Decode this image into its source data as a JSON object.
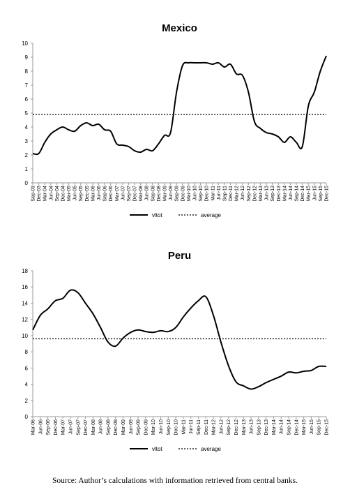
{
  "source_note": "Source: Author’s calculations with information retrieved from central banks.",
  "legend": {
    "series_label": "vltot",
    "average_label": "average"
  },
  "chart_data": [
    {
      "type": "line",
      "title": "Mexico",
      "ylim": [
        0,
        10
      ],
      "yticks": [
        0,
        1,
        2,
        3,
        4,
        5,
        6,
        7,
        8,
        9,
        10
      ],
      "x_tick_labels": [
        "Sep-03",
        "Dec-03",
        "Mar-04",
        "Jun-04",
        "Sep-04",
        "Dec-04",
        "Mar-05",
        "Jun-05",
        "Sep-05",
        "Dec-05",
        "Mar-06",
        "Jun-06",
        "Sep-06",
        "Dec-06",
        "Mar-07",
        "Jun-07",
        "Sep-07",
        "Dec-07",
        "Mar-08",
        "Jun-08",
        "Sep-08",
        "Dec-08",
        "Mar-09",
        "Jun-09",
        "Sep-09",
        "Dec-09",
        "Mar-10",
        "Jun-10",
        "Sep-10",
        "Dec-10",
        "Mar-11",
        "Jun-11",
        "Sep-11",
        "Dec-11",
        "Mar-12",
        "Jun-12",
        "Sep-12",
        "Dec-12",
        "Mar-13",
        "Jun-13",
        "Sep-13",
        "Dec-13",
        "Mar-14",
        "Jun-14",
        "Sep-14",
        "Dec-14",
        "Mar-15",
        "Jun-15",
        "Sep-15",
        "Dec-15"
      ],
      "series": [
        {
          "name": "vltot",
          "values": [
            2.1,
            2.1,
            2.9,
            3.5,
            3.8,
            4.0,
            3.8,
            3.7,
            4.1,
            4.3,
            4.1,
            4.2,
            3.8,
            3.7,
            2.8,
            2.7,
            2.6,
            2.3,
            2.2,
            2.4,
            2.3,
            2.8,
            3.4,
            3.6,
            6.5,
            8.4,
            8.6,
            8.6,
            8.6,
            8.6,
            8.5,
            8.6,
            8.3,
            8.5,
            7.8,
            7.7,
            6.5,
            4.4,
            3.9,
            3.6,
            3.5,
            3.3,
            2.9,
            3.3,
            2.9,
            2.6,
            5.5,
            6.5,
            8.0,
            9.1
          ]
        },
        {
          "name": "average",
          "values": [
            4.9
          ]
        }
      ],
      "grid": false,
      "legend": "bottom"
    },
    {
      "type": "line",
      "title": "Peru",
      "ylim": [
        0,
        18
      ],
      "yticks": [
        0,
        2,
        4,
        6,
        8,
        10,
        12,
        14,
        16,
        18
      ],
      "x_tick_labels": [
        "Mar-06",
        "Jun-06",
        "Sep-06",
        "Dec-06",
        "Mar-07",
        "Jun-07",
        "Sep-07",
        "Dec-07",
        "Mar-08",
        "Jun-08",
        "Sep-08",
        "Dec-08",
        "Mar-09",
        "Jun-09",
        "Sep-09",
        "Dec-09",
        "Mar-10",
        "Jun-10",
        "Sep-10",
        "Dec-10",
        "Mar-11",
        "Jun-11",
        "Sep-11",
        "Dec-11",
        "Mar-12",
        "Jun-12",
        "Sep-12",
        "Dec-12",
        "Mar-13",
        "Jun-13",
        "Sep-13",
        "Dec-13",
        "Mar-14",
        "Jun-14",
        "Sep-14",
        "Dec-14",
        "Mar-15",
        "Jun-15",
        "Sep-15",
        "Dec-15"
      ],
      "series": [
        {
          "name": "vltot",
          "values": [
            10.7,
            12.5,
            13.3,
            14.3,
            14.6,
            15.6,
            15.3,
            14.0,
            12.7,
            11.0,
            9.2,
            8.7,
            9.7,
            10.4,
            10.7,
            10.5,
            10.4,
            10.6,
            10.5,
            11.0,
            12.3,
            13.4,
            14.3,
            14.8,
            12.5,
            9.2,
            6.3,
            4.3,
            3.8,
            3.4,
            3.7,
            4.2,
            4.6,
            5.0,
            5.5,
            5.4,
            5.6,
            5.7,
            6.2,
            6.2
          ]
        },
        {
          "name": "average",
          "values": [
            9.6
          ]
        }
      ],
      "grid": false,
      "legend": "bottom"
    }
  ]
}
